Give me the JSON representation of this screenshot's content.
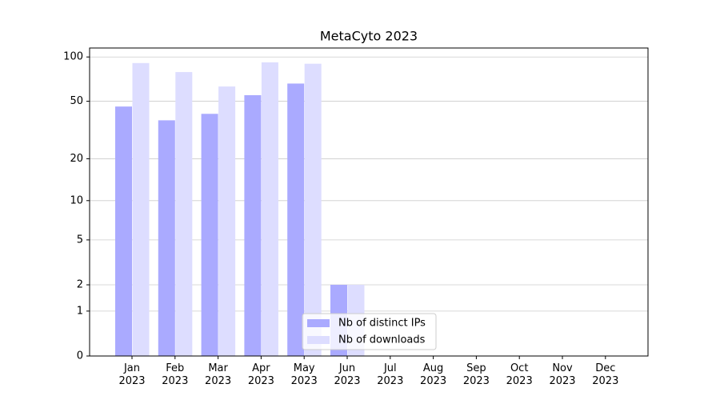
{
  "chart_data": {
    "type": "bar",
    "title": "MetaCyto 2023",
    "categories": [
      "Jan\n2023",
      "Feb\n2023",
      "Mar\n2023",
      "Apr\n2023",
      "May\n2023",
      "Jun\n2023",
      "Jul\n2023",
      "Aug\n2023",
      "Sep\n2023",
      "Oct\n2023",
      "Nov\n2023",
      "Dec\n2023"
    ],
    "series": [
      {
        "name": "Nb of distinct IPs",
        "color": "#aaaaff",
        "values": [
          46,
          37,
          41,
          55,
          66,
          2,
          0,
          0,
          0,
          0,
          0,
          0
        ]
      },
      {
        "name": "Nb of downloads",
        "color": "#ddddff",
        "values": [
          91,
          79,
          63,
          92,
          90,
          2,
          0,
          0,
          0,
          0,
          0,
          0
        ]
      }
    ],
    "yscale": "log1p",
    "ylim": [
      0,
      115
    ],
    "yticks": [
      0,
      1,
      2,
      5,
      10,
      20,
      50,
      100
    ],
    "grid": true,
    "legend": "lower center"
  }
}
